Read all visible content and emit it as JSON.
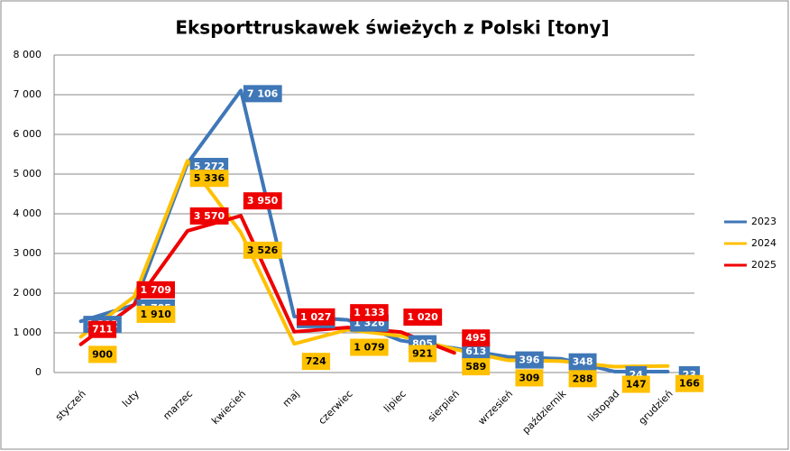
{
  "chart_data": {
    "type": "line",
    "title": "Eksporttruskawek świeżych z Polski [tony]",
    "categories": [
      "styczeń",
      "luty",
      "marzec",
      "kwiecień",
      "maj",
      "czerwiec",
      "lipiec",
      "sierpień",
      "wrzesień",
      "październik",
      "listopad",
      "grudzień"
    ],
    "series": [
      {
        "name": "2023",
        "color": "#3f77b7",
        "values": [
          1292,
          1705,
          5272,
          7106,
          1413,
          1326,
          805,
          613,
          396,
          348,
          24,
          23
        ],
        "value_labels": [
          "1 292",
          "1 705",
          "5 272",
          "7 106",
          "1 413",
          "1 326",
          "805",
          "613",
          "396",
          "348",
          "24",
          "23"
        ]
      },
      {
        "name": "2024",
        "color": "#ffc000",
        "values": [
          900,
          1910,
          5336,
          3526,
          724,
          1079,
          921,
          589,
          309,
          288,
          147,
          166
        ],
        "value_labels": [
          "900",
          "1 910",
          "5 336",
          "3 526",
          "724",
          "1 079",
          "921",
          "589",
          "309",
          "288",
          "147",
          "166"
        ]
      },
      {
        "name": "2025",
        "color": "#ee0000",
        "values": [
          711,
          1709,
          3570,
          3950,
          1027,
          1133,
          1020,
          495,
          null,
          null,
          null,
          null
        ],
        "value_labels": [
          "711",
          "1 709",
          "3 570",
          "3 950",
          "1 027",
          "1 133",
          "1 020",
          "495",
          null,
          null,
          null,
          null
        ]
      }
    ],
    "ylim": [
      0,
      8000
    ],
    "yticks": [
      0,
      {
        "value": 1000,
        "label": "1 000"
      },
      {
        "value": 2000,
        "label": "2 000"
      },
      {
        "value": 3000,
        "label": "3 000"
      },
      {
        "value": 4000,
        "label": "4 000"
      },
      {
        "value": 5000,
        "label": "5 000"
      },
      {
        "value": 6000,
        "label": "6 000"
      },
      {
        "value": 7000,
        "label": "7 000"
      },
      {
        "value": 8000,
        "label": "8 000"
      }
    ],
    "grid": true,
    "legend": "right"
  }
}
